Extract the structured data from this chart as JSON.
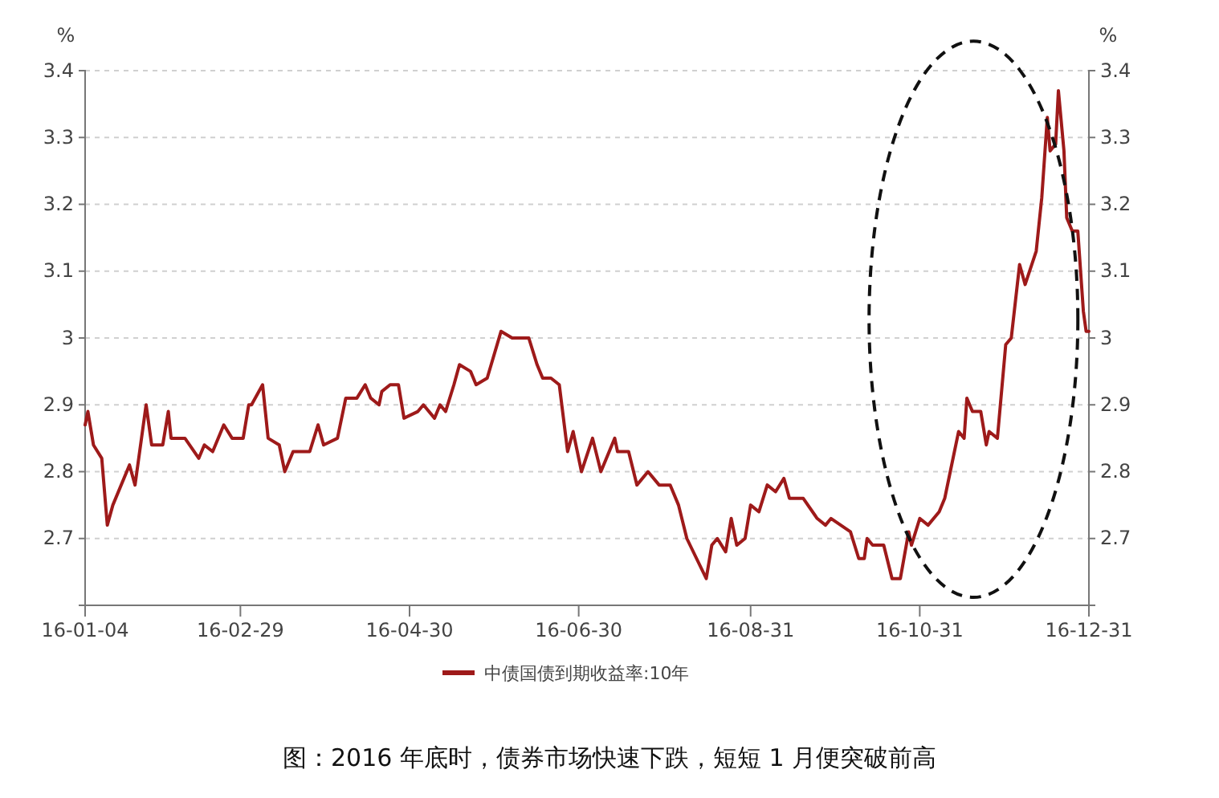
{
  "chart_data": {
    "type": "line",
    "ylabel": "%",
    "y2label": "%",
    "x": [
      "2016-01-04",
      "2016-01-05",
      "2016-01-07",
      "2016-01-10",
      "2016-01-12",
      "2016-01-14",
      "2016-01-20",
      "2016-01-22",
      "2016-01-26",
      "2016-01-28",
      "2016-02-01",
      "2016-02-03",
      "2016-02-04",
      "2016-02-09",
      "2016-02-14",
      "2016-02-16",
      "2016-02-19",
      "2016-02-23",
      "2016-02-26",
      "2016-03-01",
      "2016-03-03",
      "2016-03-04",
      "2016-03-08",
      "2016-03-10",
      "2016-03-14",
      "2016-03-16",
      "2016-03-19",
      "2016-03-25",
      "2016-03-28",
      "2016-03-30",
      "2016-04-04",
      "2016-04-07",
      "2016-04-11",
      "2016-04-14",
      "2016-04-16",
      "2016-04-19",
      "2016-04-20",
      "2016-04-23",
      "2016-04-26",
      "2016-04-28",
      "2016-05-03",
      "2016-05-05",
      "2016-05-09",
      "2016-05-11",
      "2016-05-13",
      "2016-05-16",
      "2016-05-18",
      "2016-05-22",
      "2016-05-24",
      "2016-05-28",
      "2016-06-02",
      "2016-06-06",
      "2016-06-12",
      "2016-06-15",
      "2016-06-17",
      "2016-06-20",
      "2016-06-23",
      "2016-06-26",
      "2016-06-28",
      "2016-07-01",
      "2016-07-05",
      "2016-07-08",
      "2016-07-13",
      "2016-07-14",
      "2016-07-18",
      "2016-07-21",
      "2016-07-25",
      "2016-07-29",
      "2016-08-02",
      "2016-08-05",
      "2016-08-08",
      "2016-08-15",
      "2016-08-17",
      "2016-08-19",
      "2016-08-22",
      "2016-08-24",
      "2016-08-26",
      "2016-08-29",
      "2016-08-31",
      "2016-09-03",
      "2016-09-06",
      "2016-09-09",
      "2016-09-12",
      "2016-09-14",
      "2016-09-19",
      "2016-09-24",
      "2016-09-27",
      "2016-09-29",
      "2016-10-06",
      "2016-10-09",
      "2016-10-11",
      "2016-10-12",
      "2016-10-14",
      "2016-10-18",
      "2016-10-21",
      "2016-10-24",
      "2016-10-27",
      "2016-10-28",
      "2016-10-31",
      "2016-11-03",
      "2016-11-07",
      "2016-11-09",
      "2016-11-11",
      "2016-11-14",
      "2016-11-16",
      "2016-11-17",
      "2016-11-19",
      "2016-11-22",
      "2016-11-24",
      "2016-11-25",
      "2016-11-28",
      "2016-12-01",
      "2016-12-03",
      "2016-12-06",
      "2016-12-08",
      "2016-12-12",
      "2016-12-14",
      "2016-12-16",
      "2016-12-17",
      "2016-12-19",
      "2016-12-20",
      "2016-12-22",
      "2016-12-23",
      "2016-12-25",
      "2016-12-27",
      "2016-12-29",
      "2016-12-30",
      "2016-12-31"
    ],
    "series": [
      {
        "name": "中债国债到期收益率:10年",
        "color": "#9e1a1a",
        "values": [
          2.87,
          2.89,
          2.84,
          2.82,
          2.72,
          2.75,
          2.81,
          2.78,
          2.9,
          2.84,
          2.84,
          2.89,
          2.85,
          2.85,
          2.82,
          2.84,
          2.83,
          2.87,
          2.85,
          2.85,
          2.9,
          2.9,
          2.93,
          2.85,
          2.84,
          2.8,
          2.83,
          2.83,
          2.87,
          2.84,
          2.85,
          2.91,
          2.91,
          2.93,
          2.91,
          2.9,
          2.92,
          2.93,
          2.93,
          2.88,
          2.89,
          2.9,
          2.88,
          2.9,
          2.89,
          2.93,
          2.96,
          2.95,
          2.93,
          2.94,
          3.01,
          3.0,
          3.0,
          2.96,
          2.94,
          2.94,
          2.93,
          2.83,
          2.86,
          2.8,
          2.85,
          2.8,
          2.85,
          2.83,
          2.83,
          2.78,
          2.8,
          2.78,
          2.78,
          2.75,
          2.7,
          2.64,
          2.69,
          2.7,
          2.68,
          2.73,
          2.69,
          2.7,
          2.75,
          2.74,
          2.78,
          2.77,
          2.79,
          2.76,
          2.76,
          2.73,
          2.72,
          2.73,
          2.71,
          2.67,
          2.67,
          2.7,
          2.69,
          2.69,
          2.64,
          2.64,
          2.71,
          2.69,
          2.73,
          2.72,
          2.74,
          2.76,
          2.8,
          2.86,
          2.85,
          2.91,
          2.89,
          2.89,
          2.84,
          2.86,
          2.85,
          2.99,
          3.0,
          3.11,
          3.08,
          3.13,
          3.21,
          3.33,
          3.28,
          3.29,
          3.37,
          3.28,
          3.18,
          3.16,
          3.16,
          3.04,
          3.01,
          3.01
        ]
      }
    ],
    "xlim": [
      "2016-01-04",
      "2016-12-31"
    ],
    "xticks": [
      {
        "value": "2016-01-04",
        "label": "16-01-04"
      },
      {
        "value": "2016-02-29",
        "label": "16-02-29"
      },
      {
        "value": "2016-04-30",
        "label": "16-04-30"
      },
      {
        "value": "2016-06-30",
        "label": "16-06-30"
      },
      {
        "value": "2016-08-31",
        "label": "16-08-31"
      },
      {
        "value": "2016-10-31",
        "label": "16-10-31"
      },
      {
        "value": "2016-12-31",
        "label": "16-12-31"
      }
    ],
    "ylim": [
      2.6,
      3.4
    ],
    "yticks": [
      2.7,
      2.8,
      2.9,
      3,
      3.1,
      3.2,
      3.3,
      3.4
    ],
    "y2lim": [
      2.6,
      3.4
    ],
    "y2ticks": [
      2.7,
      2.8,
      2.9,
      3,
      3.1,
      3.2,
      3.3,
      3.4
    ],
    "grid": "y",
    "legend": "bottom",
    "marker": "none",
    "line_style": "solid",
    "annotations": [
      "图：2016 年底时，债券市场快速下跌，短短 1 月便突破前高"
    ]
  }
}
